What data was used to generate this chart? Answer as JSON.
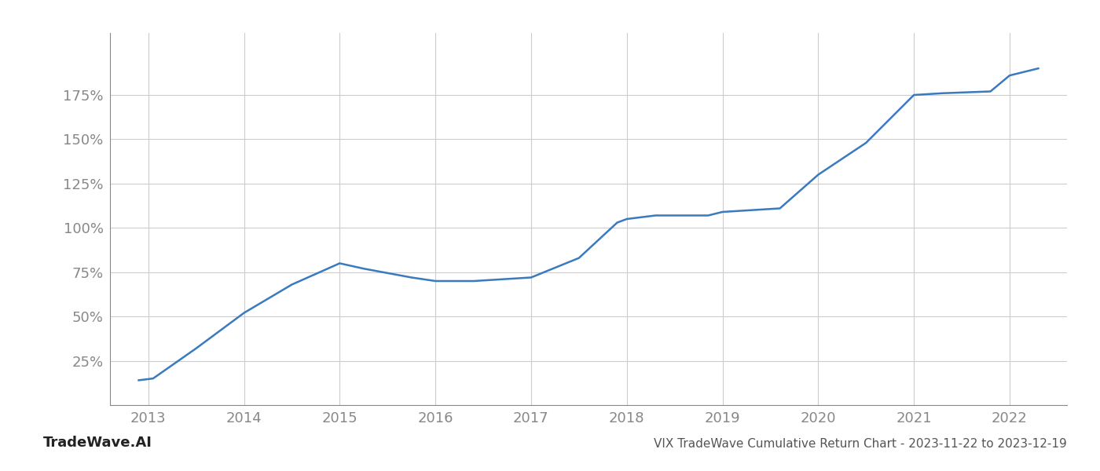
{
  "x_years": [
    2012.9,
    2013.05,
    2013.5,
    2014.0,
    2014.5,
    2015.0,
    2015.25,
    2015.75,
    2016.0,
    2016.4,
    2016.7,
    2017.0,
    2017.5,
    2017.9,
    2018.0,
    2018.3,
    2018.55,
    2018.85,
    2019.0,
    2019.3,
    2019.6,
    2020.0,
    2020.5,
    2021.0,
    2021.3,
    2021.8,
    2022.0,
    2022.3
  ],
  "y_values": [
    14,
    15,
    32,
    52,
    68,
    80,
    77,
    72,
    70,
    70,
    71,
    72,
    83,
    103,
    105,
    107,
    107,
    107,
    109,
    110,
    111,
    130,
    148,
    175,
    176,
    177,
    186,
    190
  ],
  "line_color": "#3a7abf",
  "background_color": "#ffffff",
  "grid_color": "#cccccc",
  "tick_color": "#888888",
  "title": "VIX TradeWave Cumulative Return Chart - 2023-11-22 to 2023-12-19",
  "watermark": "TradeWave.AI",
  "xlim": [
    2012.6,
    2022.6
  ],
  "ylim": [
    0,
    210
  ],
  "yticks": [
    25,
    50,
    75,
    100,
    125,
    150,
    175
  ],
  "xticks": [
    2013,
    2014,
    2015,
    2016,
    2017,
    2018,
    2019,
    2020,
    2021,
    2022
  ],
  "title_fontsize": 11,
  "tick_fontsize": 13,
  "watermark_fontsize": 13,
  "line_width": 1.8
}
